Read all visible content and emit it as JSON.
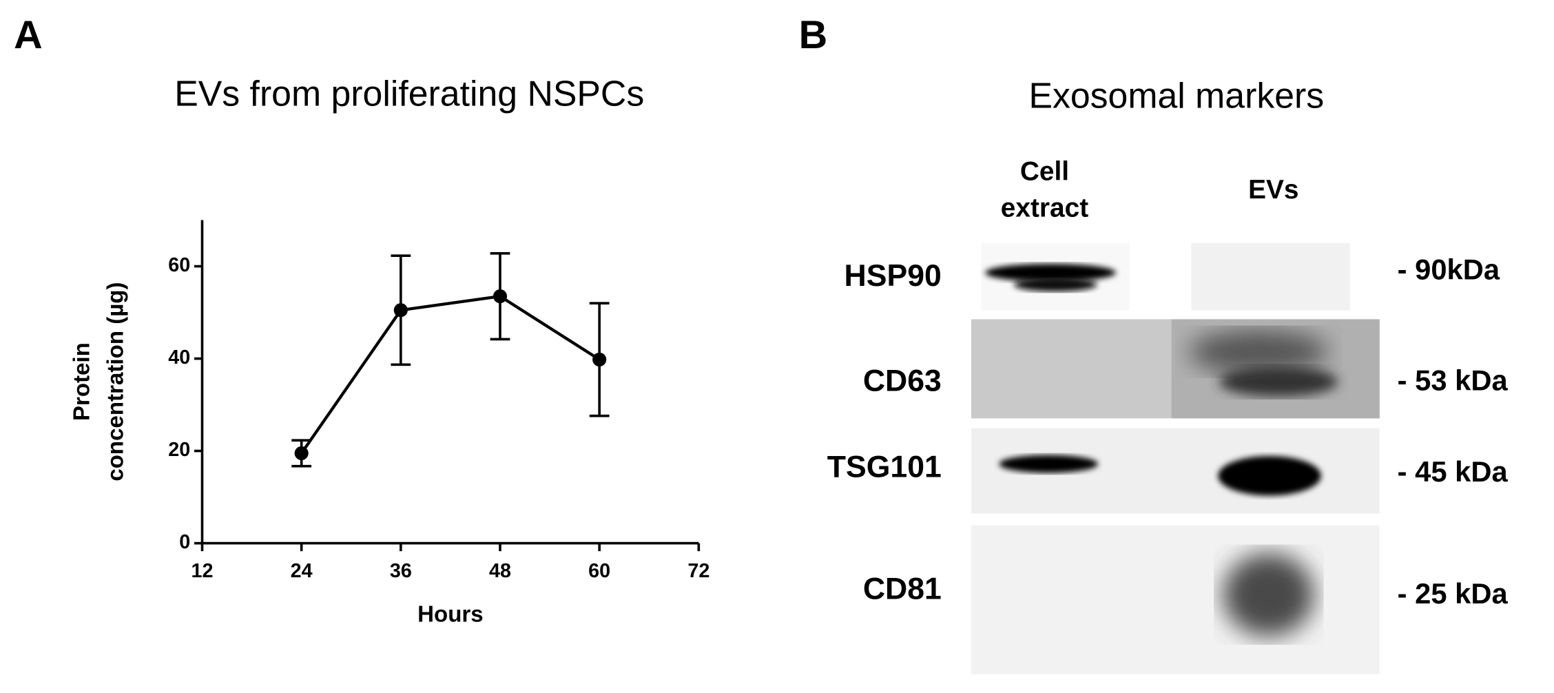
{
  "panel_labels": [
    "A",
    "B"
  ],
  "chart_data": {
    "type": "line",
    "title": "EVs from proliferating NSPCs",
    "xlabel": "Hours",
    "ylabel": [
      "Protein",
      "concentration (µg)"
    ],
    "x": [
      24,
      36,
      48,
      60
    ],
    "values": [
      19.5,
      50.5,
      53.5,
      39.8
    ],
    "errors": [
      2.8,
      11.8,
      9.3,
      12.2
    ],
    "color": "#000000",
    "xlim": [
      12,
      72
    ],
    "xticks": [
      12,
      24,
      36,
      48,
      60,
      72
    ],
    "ylim": [
      0,
      70
    ],
    "yticks": [
      0,
      20,
      40,
      60
    ],
    "grid": false
  },
  "blot": {
    "title": "Exosomal markers",
    "lanes": [
      [
        "Cell",
        "extract"
      ],
      [
        "EVs"
      ]
    ],
    "rows": [
      {
        "label": "HSP90",
        "size": "- 90kDa"
      },
      {
        "label": "CD63",
        "size": "- 53 kDa"
      },
      {
        "label": "TSG101",
        "size": "- 45 kDa"
      },
      {
        "label": "CD81",
        "size": "- 25 kDa"
      }
    ]
  }
}
